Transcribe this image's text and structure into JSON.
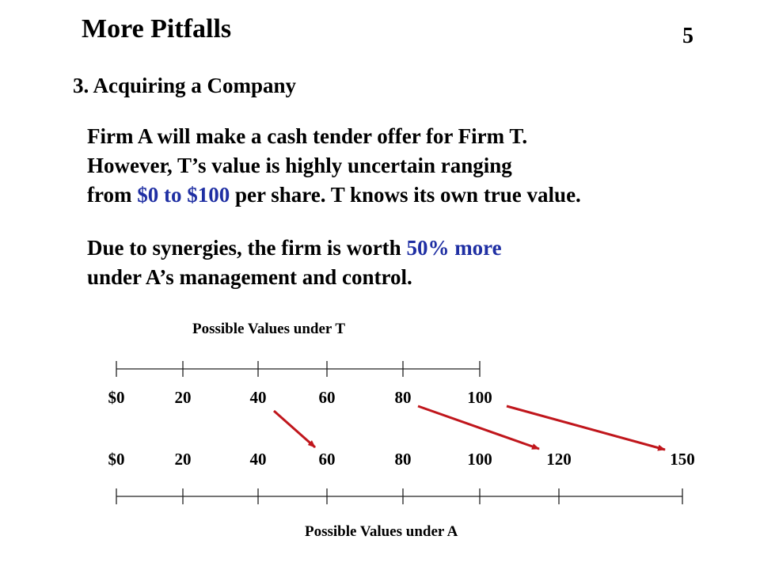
{
  "slide": {
    "title": "More Pitfalls",
    "number": "5",
    "heading": "3. Acquiring a Company"
  },
  "paragraph1": {
    "line1": "Firm A will make a cash tender offer for Firm T.",
    "line2": "However, T’s value is highly uncertain ranging",
    "line3_pre": "from ",
    "line3_highlight": "$0 to $100",
    "line3_post": " per share. T knows its own true value."
  },
  "paragraph2": {
    "line1_pre": "Due to synergies, the firm is worth ",
    "line1_highlight": "50% more",
    "line2": "under A’s management and control."
  },
  "colors": {
    "highlight": "#1f2fa3",
    "arrow": "#c0161c"
  },
  "diagram": {
    "top_axis_title": "Possible Values under T",
    "bottom_axis_title": "Possible Values under A",
    "top_ticks": [
      "$0",
      "20",
      "40",
      "60",
      "80",
      "100"
    ],
    "bottom_ticks": [
      "$0",
      "20",
      "40",
      "60",
      "80",
      "100",
      "120",
      "150"
    ],
    "mappings": [
      {
        "from": "40",
        "to": "60"
      },
      {
        "from": "80",
        "to": "120"
      },
      {
        "from": "100",
        "to": "150"
      }
    ]
  }
}
